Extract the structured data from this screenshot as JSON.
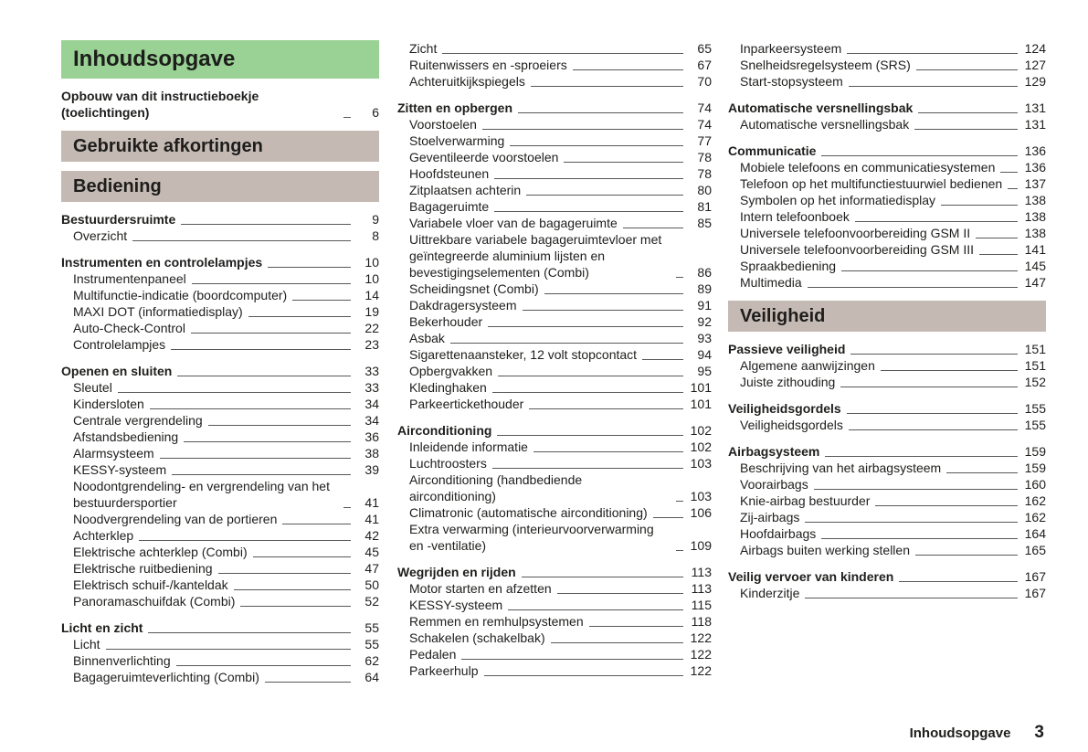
{
  "colors": {
    "green": "#99d294",
    "tan": "#c5bab3",
    "leader": "#58585b"
  },
  "footer": {
    "label": "Inhoudsopgave",
    "page_number": "3"
  },
  "columns": [
    {
      "blocks": [
        {
          "type": "title-banner",
          "text": "Inhoudsopgave"
        },
        {
          "type": "group",
          "entries": [
            {
              "label": "Opbouw van dit instructieboekje (toelichtingen)",
              "page": "6",
              "bold": true
            }
          ]
        },
        {
          "type": "banner",
          "text": "Gebruikte afkortingen"
        },
        {
          "type": "banner",
          "text": "Bediening"
        },
        {
          "type": "group",
          "entries": [
            {
              "label": "Bestuurdersruimte",
              "page": "9",
              "bold": true
            },
            {
              "label": "Overzicht",
              "page": "8"
            }
          ]
        },
        {
          "type": "group",
          "entries": [
            {
              "label": "Instrumenten en controlelampjes",
              "page": "10",
              "bold": true
            },
            {
              "label": "Instrumentenpaneel",
              "page": "10"
            },
            {
              "label": "Multifunctie-indicatie (boordcomputer)",
              "page": "14"
            },
            {
              "label": "MAXI DOT (informatiedisplay)",
              "page": "19"
            },
            {
              "label": "Auto-Check-Control",
              "page": "22"
            },
            {
              "label": "Controlelampjes",
              "page": "23"
            }
          ]
        },
        {
          "type": "group",
          "entries": [
            {
              "label": "Openen en sluiten",
              "page": "33",
              "bold": true
            },
            {
              "label": "Sleutel",
              "page": "33"
            },
            {
              "label": "Kindersloten",
              "page": "34"
            },
            {
              "label": "Centrale vergrendeling",
              "page": "34"
            },
            {
              "label": "Afstandsbediening",
              "page": "36"
            },
            {
              "label": "Alarmsysteem",
              "page": "38"
            },
            {
              "label": "KESSY-systeem",
              "page": "39"
            },
            {
              "label": "Noodontgrendeling- en vergrendeling van het bestuurdersportier",
              "page": "41"
            },
            {
              "label": "Noodvergrendeling van de portieren",
              "page": "41"
            },
            {
              "label": "Achterklep",
              "page": "42"
            },
            {
              "label": "Elektrische achterklep (Combi)",
              "page": "45"
            },
            {
              "label": "Elektrische ruitbediening",
              "page": "47"
            },
            {
              "label": "Elektrisch schuif-/kanteldak",
              "page": "50"
            },
            {
              "label": "Panoramaschuifdak (Combi)",
              "page": "52"
            }
          ]
        },
        {
          "type": "group",
          "entries": [
            {
              "label": "Licht en zicht",
              "page": "55",
              "bold": true
            },
            {
              "label": "Licht",
              "page": "55"
            },
            {
              "label": "Binnenverlichting",
              "page": "62"
            },
            {
              "label": "Bagageruimteverlichting (Combi)",
              "page": "64"
            }
          ]
        }
      ]
    },
    {
      "blocks": [
        {
          "type": "group",
          "entries": [
            {
              "label": "Zicht",
              "page": "65"
            },
            {
              "label": "Ruitenwissers en -sproeiers",
              "page": "67"
            },
            {
              "label": "Achteruitkijkspiegels",
              "page": "70"
            }
          ]
        },
        {
          "type": "group",
          "entries": [
            {
              "label": "Zitten en opbergen",
              "page": "74",
              "bold": true
            },
            {
              "label": "Voorstoelen",
              "page": "74"
            },
            {
              "label": "Stoelverwarming",
              "page": "77"
            },
            {
              "label": "Geventileerde voorstoelen",
              "page": "78"
            },
            {
              "label": "Hoofdsteunen",
              "page": "78"
            },
            {
              "label": "Zitplaatsen achterin",
              "page": "80"
            },
            {
              "label": "Bagageruimte",
              "page": "81"
            },
            {
              "label": "Variabele vloer van de bagageruimte",
              "page": "85"
            },
            {
              "label": "Uittrekbare variabele bagageruimtevloer met geïntegreerde aluminium lijsten en bevestigingselementen (Combi)",
              "page": "86"
            },
            {
              "label": "Scheidingsnet (Combi)",
              "page": "89"
            },
            {
              "label": "Dakdragersysteem",
              "page": "91"
            },
            {
              "label": "Bekerhouder",
              "page": "92"
            },
            {
              "label": "Asbak",
              "page": "93"
            },
            {
              "label": "Sigarettenaansteker, 12 volt stopcontact",
              "page": "94"
            },
            {
              "label": "Opbergvakken",
              "page": "95"
            },
            {
              "label": "Kledinghaken",
              "page": "101"
            },
            {
              "label": "Parkeertickethouder",
              "page": "101"
            }
          ]
        },
        {
          "type": "group",
          "entries": [
            {
              "label": "Airconditioning",
              "page": "102",
              "bold": true
            },
            {
              "label": "Inleidende informatie",
              "page": "102"
            },
            {
              "label": "Luchtroosters",
              "page": "103"
            },
            {
              "label": "Airconditioning (handbediende airconditioning)",
              "page": "103"
            },
            {
              "label": "Climatronic (automatische airconditioning)",
              "page": "106"
            },
            {
              "label": "Extra verwarming (interieurvoorverwarming en -ventilatie)",
              "page": "109"
            }
          ]
        },
        {
          "type": "group",
          "entries": [
            {
              "label": "Wegrijden en rijden",
              "page": "113",
              "bold": true
            },
            {
              "label": "Motor starten en afzetten",
              "page": "113"
            },
            {
              "label": "KESSY-systeem",
              "page": "115"
            },
            {
              "label": "Remmen en remhulpsystemen",
              "page": "118"
            },
            {
              "label": "Schakelen (schakelbak)",
              "page": "122"
            },
            {
              "label": "Pedalen",
              "page": "122"
            },
            {
              "label": "Parkeerhulp",
              "page": "122"
            }
          ]
        }
      ]
    },
    {
      "blocks": [
        {
          "type": "group",
          "entries": [
            {
              "label": "Inparkeersysteem",
              "page": "124"
            },
            {
              "label": "Snelheidsregelsysteem (SRS)",
              "page": "127"
            },
            {
              "label": "Start-stopsysteem",
              "page": "129"
            }
          ]
        },
        {
          "type": "group",
          "entries": [
            {
              "label": "Automatische versnellingsbak",
              "page": "131",
              "bold": true
            },
            {
              "label": "Automatische versnellingsbak",
              "page": "131"
            }
          ]
        },
        {
          "type": "group",
          "entries": [
            {
              "label": "Communicatie",
              "page": "136",
              "bold": true
            },
            {
              "label": "Mobiele telefoons en communicatiesystemen",
              "page": "136"
            },
            {
              "label": "Telefoon op het multifunctiestuurwiel bedienen",
              "page": "137"
            },
            {
              "label": "Symbolen op het informatiedisplay",
              "page": "138"
            },
            {
              "label": "Intern telefoonboek",
              "page": "138"
            },
            {
              "label": "Universele telefoonvoorbereiding GSM II",
              "page": "138"
            },
            {
              "label": "Universele telefoonvoorbereiding GSM III",
              "page": "141"
            },
            {
              "label": "Spraakbediening",
              "page": "145"
            },
            {
              "label": "Multimedia",
              "page": "147"
            }
          ]
        },
        {
          "type": "banner",
          "text": "Veiligheid"
        },
        {
          "type": "group",
          "entries": [
            {
              "label": "Passieve veiligheid",
              "page": "151",
              "bold": true
            },
            {
              "label": "Algemene aanwijzingen",
              "page": "151"
            },
            {
              "label": "Juiste zithouding",
              "page": "152"
            }
          ]
        },
        {
          "type": "group",
          "entries": [
            {
              "label": "Veiligheidsgordels",
              "page": "155",
              "bold": true
            },
            {
              "label": "Veiligheidsgordels",
              "page": "155"
            }
          ]
        },
        {
          "type": "group",
          "entries": [
            {
              "label": "Airbagsysteem",
              "page": "159",
              "bold": true
            },
            {
              "label": "Beschrijving van het airbagsysteem",
              "page": "159"
            },
            {
              "label": "Voorairbags",
              "page": "160"
            },
            {
              "label": "Knie-airbag bestuurder",
              "page": "162"
            },
            {
              "label": "Zij-airbags",
              "page": "162"
            },
            {
              "label": "Hoofdairbags",
              "page": "164"
            },
            {
              "label": "Airbags buiten werking stellen",
              "page": "165"
            }
          ]
        },
        {
          "type": "group",
          "entries": [
            {
              "label": "Veilig vervoer van kinderen",
              "page": "167",
              "bold": true
            },
            {
              "label": "Kinderzitje",
              "page": "167"
            }
          ]
        }
      ]
    }
  ]
}
